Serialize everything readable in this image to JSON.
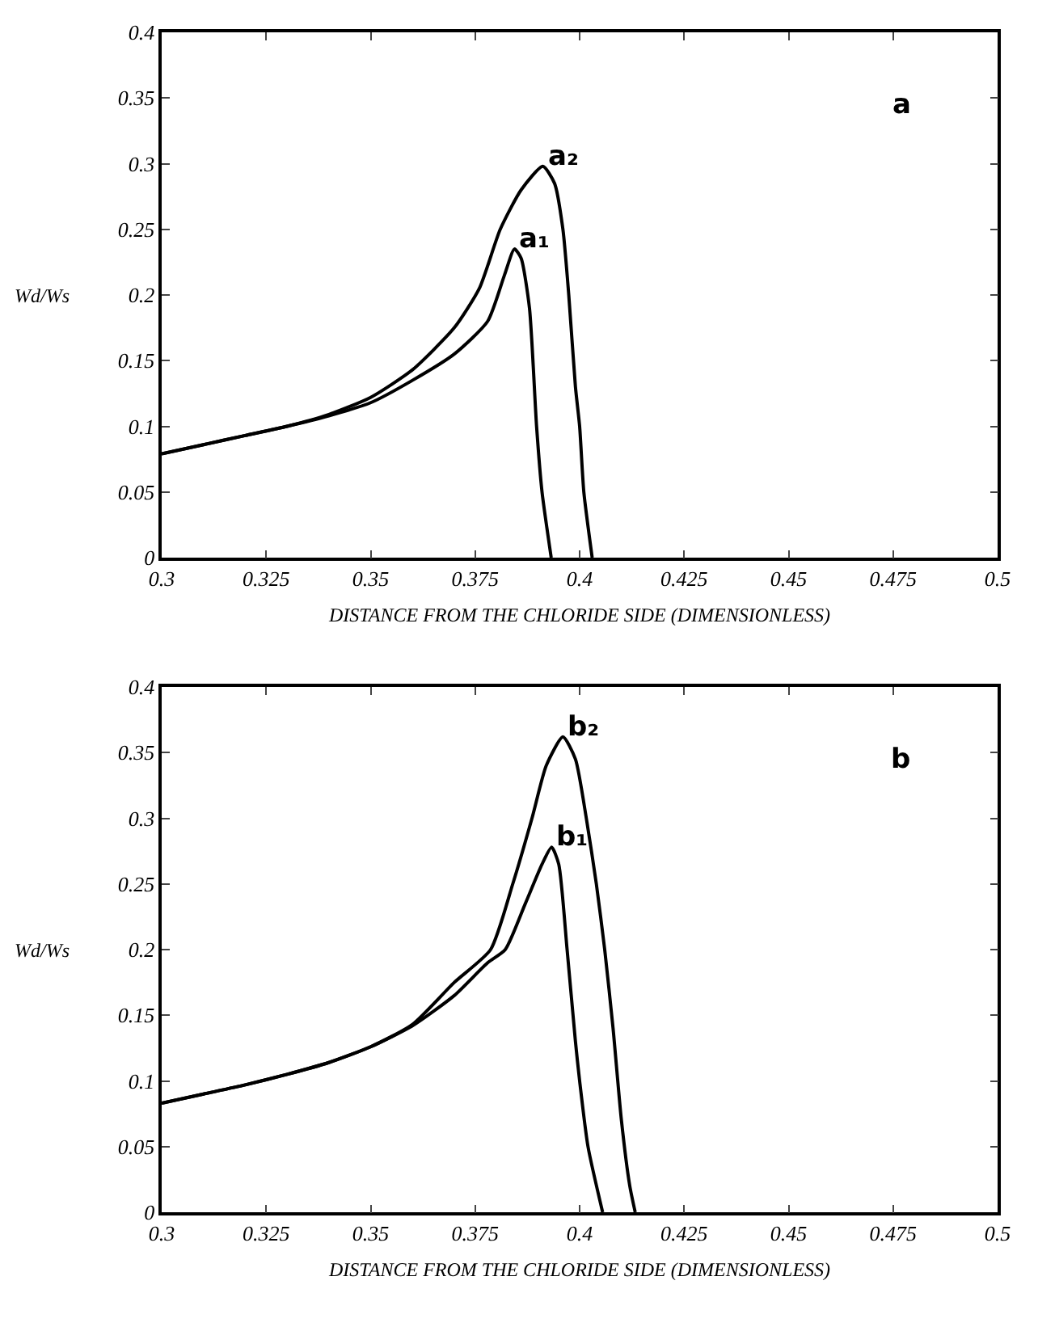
{
  "chart_data": [
    {
      "type": "line",
      "xlabel": "DISTANCE FROM THE CHLORIDE SIDE (DIMENSIONLESS)",
      "ylabel": "Wd/Ws",
      "annotations": [
        "a"
      ],
      "xlim": [
        0.3,
        0.5
      ],
      "xticks": [
        0.3,
        0.325,
        0.35,
        0.375,
        0.4,
        0.425,
        0.45,
        0.475,
        0.5
      ],
      "ylim": [
        0,
        0.4
      ],
      "yticks": [
        0,
        0.05,
        0.1,
        0.15,
        0.2,
        0.25,
        0.3,
        0.35,
        0.4
      ],
      "grid": false,
      "legend": false,
      "marker": "none",
      "line_style": "solid",
      "series": [
        {
          "name": "a₁",
          "color": "#000000",
          "x": [
            0.3,
            0.31,
            0.32,
            0.33,
            0.34,
            0.35,
            0.36,
            0.37,
            0.378,
            0.382,
            0.3844,
            0.386,
            0.388,
            0.3897,
            0.391,
            0.3932
          ],
          "values": [
            0.079,
            0.086,
            0.093,
            0.1,
            0.108,
            0.118,
            0.135,
            0.155,
            0.18,
            0.215,
            0.235,
            0.228,
            0.19,
            0.1,
            0.05,
            0
          ]
        },
        {
          "name": "a₂",
          "color": "#000000",
          "x": [
            0.3,
            0.31,
            0.32,
            0.33,
            0.34,
            0.35,
            0.36,
            0.37,
            0.376,
            0.381,
            0.386,
            0.3912,
            0.394,
            0.396,
            0.3974,
            0.399,
            0.4,
            0.401,
            0.403
          ],
          "values": [
            0.079,
            0.086,
            0.093,
            0.1,
            0.109,
            0.122,
            0.143,
            0.175,
            0.205,
            0.25,
            0.28,
            0.298,
            0.285,
            0.25,
            0.2,
            0.13,
            0.1,
            0.05,
            0
          ]
        }
      ]
    },
    {
      "type": "line",
      "xlabel": "DISTANCE FROM THE CHLORIDE SIDE (DIMENSIONLESS)",
      "ylabel": "Wd/Ws",
      "annotations": [
        "b"
      ],
      "xlim": [
        0.3,
        0.5
      ],
      "xticks": [
        0.3,
        0.325,
        0.35,
        0.375,
        0.4,
        0.425,
        0.45,
        0.475,
        0.5
      ],
      "ylim": [
        0,
        0.4
      ],
      "yticks": [
        0,
        0.05,
        0.1,
        0.15,
        0.2,
        0.25,
        0.3,
        0.35,
        0.4
      ],
      "grid": false,
      "legend": false,
      "marker": "none",
      "line_style": "solid",
      "series": [
        {
          "name": "b₁",
          "color": "#000000",
          "x": [
            0.3,
            0.31,
            0.32,
            0.33,
            0.34,
            0.35,
            0.36,
            0.37,
            0.378,
            0.3822,
            0.387,
            0.391,
            0.3933,
            0.395,
            0.397,
            0.399,
            0.4,
            0.402,
            0.4055
          ],
          "values": [
            0.083,
            0.09,
            0.097,
            0.105,
            0.114,
            0.126,
            0.142,
            0.165,
            0.19,
            0.2,
            0.235,
            0.265,
            0.278,
            0.265,
            0.2,
            0.13,
            0.1,
            0.05,
            0
          ]
        },
        {
          "name": "b₂",
          "color": "#000000",
          "x": [
            0.3,
            0.31,
            0.32,
            0.33,
            0.34,
            0.35,
            0.36,
            0.37,
            0.3787,
            0.384,
            0.3886,
            0.392,
            0.396,
            0.399,
            0.4016,
            0.404,
            0.406,
            0.408,
            0.41,
            0.412,
            0.4133
          ],
          "values": [
            0.083,
            0.09,
            0.097,
            0.105,
            0.114,
            0.126,
            0.143,
            0.175,
            0.2,
            0.25,
            0.3,
            0.34,
            0.362,
            0.345,
            0.3,
            0.25,
            0.2,
            0.14,
            0.07,
            0.02,
            0
          ]
        }
      ]
    }
  ]
}
